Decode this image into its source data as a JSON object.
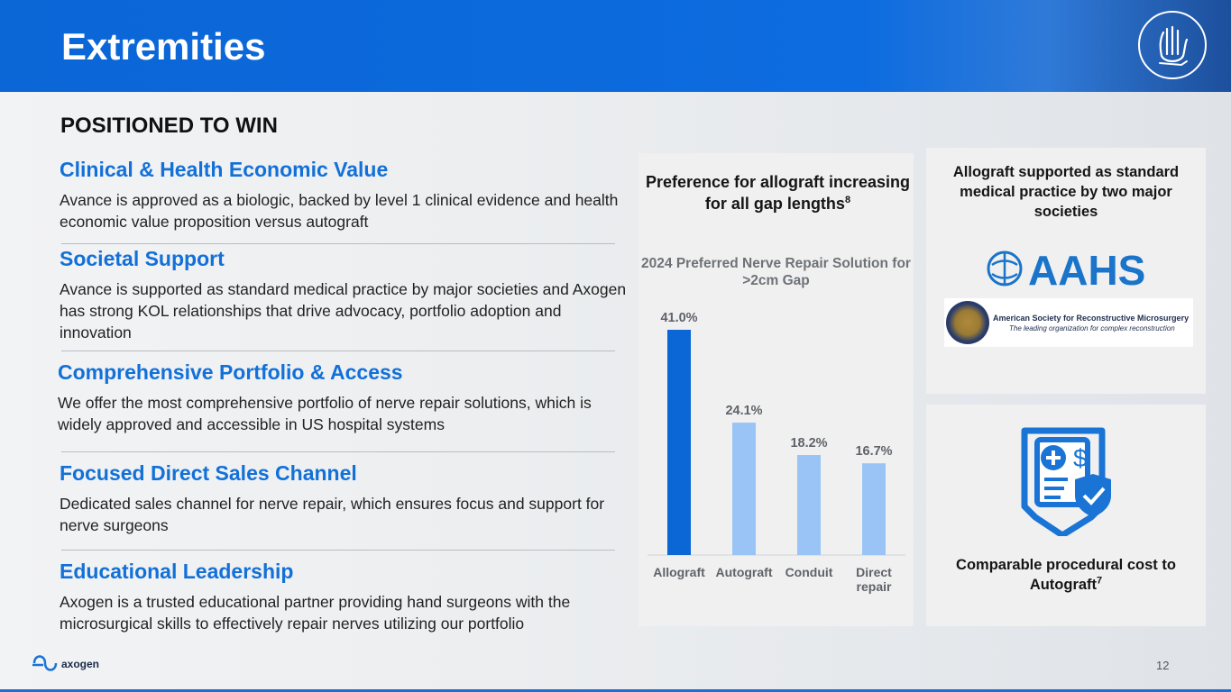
{
  "header": {
    "title": "Extremities",
    "emblem_icon": "hand-foot-icon"
  },
  "subtitle": "POSITIONED TO WIN",
  "features": [
    {
      "heading": "Clinical & Health Economic Value",
      "body": "Avance is approved as a biologic, backed by level 1 clinical evidence and health economic value proposition versus autograft"
    },
    {
      "heading": "Societal Support",
      "body": "Avance is supported as standard medical practice by major societies and Axogen has strong KOL relationships that drive advocacy, portfolio adoption and innovation"
    },
    {
      "heading": "Comprehensive Portfolio & Access",
      "body": "We offer the most comprehensive portfolio of nerve repair solutions, which is widely approved and accessible in US hospital systems"
    },
    {
      "heading": "Focused Direct Sales Channel",
      "body": "Dedicated sales channel for nerve repair, which ensures focus and support for nerve surgeons"
    },
    {
      "heading": "Educational Leadership",
      "body": "Axogen is a trusted educational partner providing hand surgeons with the microsurgical skills to effectively repair nerves utilizing our portfolio"
    }
  ],
  "chart_panel": {
    "title": "Preference for allograft increasing for all gap lengths",
    "title_footnote": "8"
  },
  "chart_data": {
    "type": "bar",
    "title": "2024 Preferred Nerve Repair Solution for >2cm Gap",
    "categories": [
      "Allograft",
      "Autograft",
      "Conduit",
      "Direct repair"
    ],
    "values": [
      41.0,
      24.1,
      18.2,
      16.7
    ],
    "value_labels": [
      "41.0%",
      "24.1%",
      "18.2%",
      "16.7%"
    ],
    "colors": [
      "#0b66d6",
      "#99c4f5",
      "#99c4f5",
      "#99c4f5"
    ],
    "ylim": [
      0,
      41.0
    ],
    "grid": false,
    "legend": "none"
  },
  "societies_panel": {
    "caption": "Allograft supported as standard medical practice by two major societies",
    "aahs_logo_text": "AAHS",
    "asrm_name": "American Society for Reconstructive Microsurgery",
    "asrm_tagline": "The leading organization for complex reconstruction"
  },
  "cost_panel": {
    "icon": "medical-bill-shield-icon",
    "caption": "Comparable procedural cost to Autograft",
    "caption_footnote": "7"
  },
  "footer": {
    "logo_text": "axogen",
    "page_number": "12"
  },
  "colors": {
    "brand_blue": "#0b66d6",
    "heading_blue": "#1270d8",
    "light_bar": "#99c4f5"
  }
}
